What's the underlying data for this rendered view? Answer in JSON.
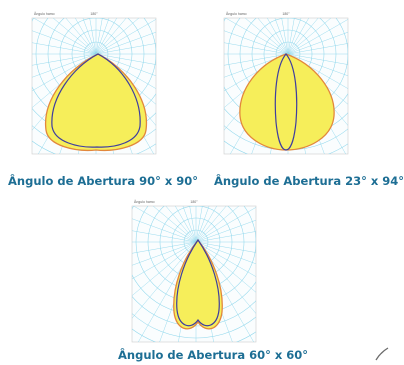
{
  "colors": {
    "caption": "#1d6e94",
    "grid": "#8fd7ec",
    "fill": "#f6ee5a",
    "curve_c0": "#e2883c",
    "curve_c90": "#3e3da0",
    "frame": "#c9c9c9"
  },
  "diagrams": [
    {
      "header_left": "Ångulo hamo",
      "header_center": "180°",
      "caption": "Ângulo de Abertura 90° x 90°",
      "shape": "wide-cone"
    },
    {
      "header_left": "Ångulo hamo",
      "header_center": "180°",
      "caption": "Ângulo de Abertura 23° x 94°",
      "shape": "oval-plus-narrow"
    },
    {
      "header_left": "Ångulo hamo",
      "header_center": "180°",
      "caption": "Ângulo de Abertura 60° x 60°",
      "shape": "heart"
    }
  ],
  "decoration": "corner-stroke-icon"
}
